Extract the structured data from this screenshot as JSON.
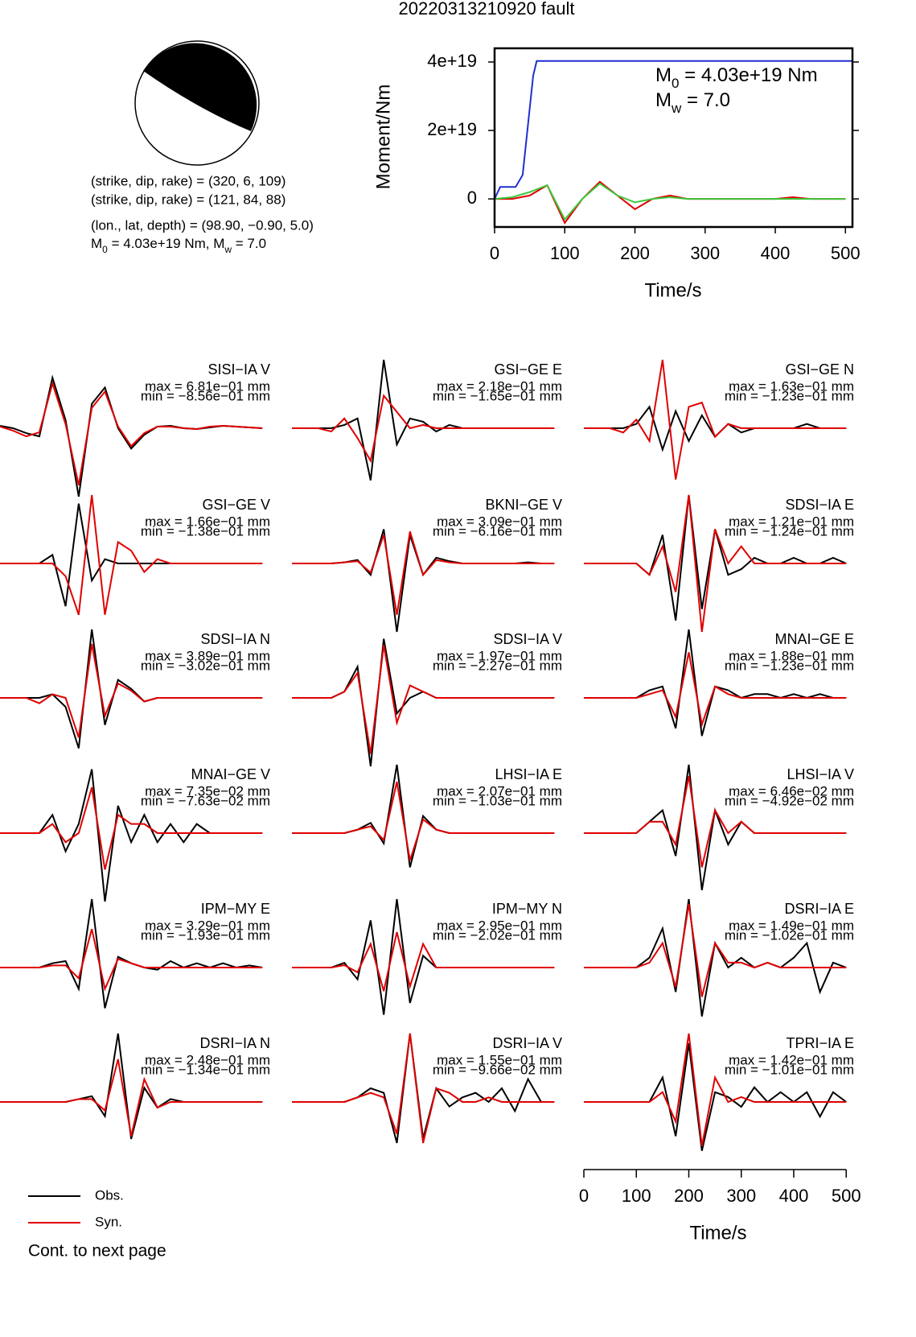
{
  "title": "20220313210920 fault",
  "focal": {
    "lines": [
      "(strike, dip, rake) = (320, 6, 109)",
      "(strike, dip, rake) = (121, 84, 88)",
      "(lon., lat, depth) = (98.90, −0.90, 5.0)"
    ],
    "moment_line": [
      "M",
      "0",
      " = 4.03e+19 Nm, M",
      "w",
      " = 7.0"
    ]
  },
  "chart_data": [
    {
      "type": "line",
      "ylabel": "Moment/Nm",
      "xlabel": "Time/s",
      "xlim": [
        0,
        510
      ],
      "ylim": [
        -8.2e+18,
        4.4e+19
      ],
      "xticks": [
        0,
        100,
        200,
        300,
        400,
        500
      ],
      "yticks": [
        0,
        {
          "value": 2e+19,
          "label": "2e+19"
        },
        {
          "value": 4e+19,
          "label": "4e+19"
        }
      ],
      "annotations": [
        [
          "M",
          "0",
          " = 4.03e+19 Nm"
        ],
        [
          "M",
          "w",
          " = 7.0"
        ]
      ],
      "series": [
        {
          "color": "#e00000",
          "x": [
            0,
            25,
            50,
            75,
            100,
            125,
            150,
            175,
            200,
            225,
            250,
            275,
            300,
            325,
            350,
            375,
            400,
            425,
            450,
            475,
            500
          ],
          "values": [
            0,
            0,
            1e+18,
            4e+18,
            -7e+18,
            0,
            5e+18,
            1e+18,
            -3e+18,
            0,
            1e+18,
            0,
            0,
            0,
            0,
            0,
            0,
            5e+17,
            0,
            0,
            0
          ]
        },
        {
          "color": "#3cc83c",
          "x": [
            0,
            25,
            50,
            75,
            100,
            125,
            150,
            175,
            200,
            225,
            250,
            275,
            300,
            325,
            350,
            375,
            400,
            425,
            450,
            475,
            500
          ],
          "values": [
            0,
            5e+17,
            2e+18,
            4e+18,
            -6e+18,
            0,
            4.5e+18,
            1e+18,
            -1e+18,
            0,
            5e+17,
            0,
            0,
            0,
            0,
            0,
            0,
            0,
            0,
            0,
            0
          ]
        },
        {
          "color": "#1f2fd0",
          "x": [
            0,
            8,
            20,
            30,
            40,
            55,
            60,
            510
          ],
          "values": [
            0,
            3.5e+18,
            3.5e+18,
            3.5e+18,
            7e+18,
            3.6e+19,
            4.03e+19,
            4.03e+19
          ]
        }
      ]
    },
    {
      "type": "waveform",
      "xlabel": "Time/s",
      "xlim": [
        0,
        515
      ],
      "xticks": [
        0,
        100,
        200,
        300,
        400,
        500
      ],
      "x": [
        0,
        25,
        50,
        75,
        100,
        125,
        150,
        175,
        200,
        225,
        250,
        275,
        300,
        325,
        350,
        375,
        400,
        425,
        450,
        475,
        500
      ],
      "legend": [
        {
          "name": "Obs.",
          "color": "#000000"
        },
        {
          "name": "Syn.",
          "color": "#e00000"
        }
      ],
      "footer": "Cont. to next page",
      "panels": [
        {
          "label": "SISI−IA V",
          "max_label": "max = 6.81e−01 mm",
          "min_label": "min = −8.56e−01 mm",
          "obs": [
            0.03,
            0,
            -0.06,
            -0.1,
            0.62,
            0.1,
            -0.84,
            0.3,
            0.5,
            0,
            -0.25,
            -0.08,
            0.02,
            0.03,
            0,
            -0.01,
            0.01,
            0.03,
            0.02,
            0.01,
            0
          ],
          "syn": [
            0.02,
            -0.03,
            -0.1,
            -0.05,
            0.55,
            0.05,
            -0.7,
            0.25,
            0.45,
            0.02,
            -0.22,
            -0.06,
            0.02,
            0.02,
            0,
            -0.01,
            0.02,
            0.03,
            0.02,
            0.01,
            0
          ]
        },
        {
          "label": "GSI−GE E",
          "max_label": "max = 2.18e−01 mm",
          "min_label": "min = −1.65e−01 mm",
          "obs": [
            0,
            0,
            0,
            0,
            0.01,
            0.03,
            -0.16,
            0.21,
            -0.05,
            0.03,
            0.02,
            -0.01,
            0.01,
            0,
            0,
            0,
            0,
            0,
            0,
            0,
            0
          ],
          "syn": [
            0,
            0,
            0,
            -0.01,
            0.03,
            -0.03,
            -0.1,
            0.1,
            0.05,
            0,
            0.01,
            0,
            0,
            0,
            0,
            0,
            0,
            0,
            0,
            0,
            0
          ]
        },
        {
          "label": "GSI−GE N",
          "max_label": "max = 1.63e−01 mm",
          "min_label": "min = −1.23e−01 mm",
          "obs": [
            0,
            0,
            0,
            0,
            0.01,
            0.05,
            -0.05,
            0.04,
            -0.03,
            0.03,
            -0.02,
            0.01,
            -0.01,
            0,
            0,
            0,
            0,
            0.01,
            0,
            0,
            0
          ],
          "syn": [
            0,
            0,
            0,
            -0.01,
            0.02,
            -0.03,
            0.16,
            -0.12,
            0.05,
            0.06,
            -0.02,
            0.01,
            0,
            0,
            0,
            0,
            0,
            0,
            0,
            0,
            0
          ]
        },
        {
          "label": "GSI−GE V",
          "max_label": "max = 1.66e−01 mm",
          "min_label": "min = −1.38e−01 mm",
          "obs": [
            0,
            0,
            0,
            0,
            0.02,
            -0.1,
            0.14,
            -0.04,
            0.01,
            0,
            0,
            0,
            0,
            0,
            0,
            0,
            0,
            0,
            0,
            0,
            0
          ],
          "syn": [
            0,
            0,
            0,
            0,
            0,
            -0.03,
            -0.12,
            0.16,
            -0.12,
            0.05,
            0.03,
            -0.02,
            0.01,
            0,
            0,
            0,
            0,
            0,
            0,
            0,
            0
          ]
        },
        {
          "label": "BKNI−GE V",
          "max_label": "max = 3.09e−01 mm",
          "min_label": "min = −6.16e−01 mm",
          "obs": [
            0,
            0,
            0,
            0,
            0.01,
            0.03,
            -0.1,
            0.3,
            -0.6,
            0.25,
            -0.1,
            0.05,
            0.02,
            0,
            0,
            0,
            0,
            0,
            0.01,
            0,
            0
          ],
          "syn": [
            0,
            0,
            0,
            0,
            0.01,
            0.02,
            -0.08,
            0.25,
            -0.45,
            0.28,
            -0.1,
            0.03,
            0.01,
            0,
            0,
            0,
            0,
            0,
            0,
            0,
            0
          ]
        },
        {
          "label": "SDSI−IA E",
          "max_label": "max = 1.21e−01 mm",
          "min_label": "min = −1.24e−01 mm",
          "obs": [
            0,
            0,
            0,
            0,
            0,
            -0.02,
            0.05,
            -0.1,
            0.12,
            -0.08,
            0.06,
            -0.02,
            -0.01,
            0.01,
            0,
            0,
            0.01,
            0,
            0,
            0.01,
            0
          ],
          "syn": [
            0,
            0,
            0,
            0,
            0,
            -0.02,
            0.03,
            -0.05,
            0.12,
            -0.12,
            0.06,
            0,
            0.03,
            0,
            0,
            0,
            0,
            0,
            0,
            0,
            0
          ]
        },
        {
          "label": "SDSI−IA N",
          "max_label": "max = 3.89e−01 mm",
          "min_label": "min = −3.02e−01 mm",
          "obs": [
            0,
            0,
            0,
            0,
            0.02,
            -0.05,
            -0.28,
            0.38,
            -0.15,
            0.1,
            0.05,
            -0.02,
            0,
            0,
            0,
            0,
            0,
            0,
            0,
            0,
            0
          ],
          "syn": [
            0,
            0,
            0,
            -0.03,
            0.02,
            0,
            -0.22,
            0.3,
            -0.1,
            0.08,
            0.04,
            -0.02,
            0,
            0,
            0,
            0,
            0,
            0,
            0,
            0,
            0
          ]
        },
        {
          "label": "SDSI−IA V",
          "max_label": "max = 1.97e−01 mm",
          "min_label": "min = −2.27e−01 mm",
          "obs": [
            0,
            0,
            0,
            0,
            0.02,
            0.1,
            -0.22,
            0.19,
            -0.05,
            0,
            0.02,
            0,
            0,
            0,
            0,
            0,
            0,
            0,
            0,
            0,
            0
          ],
          "syn": [
            0,
            0,
            0,
            0,
            0.02,
            0.08,
            -0.18,
            0.17,
            -0.08,
            0.04,
            0.02,
            0,
            0,
            0,
            0,
            0,
            0,
            0,
            0,
            0,
            0
          ]
        },
        {
          "label": "MNAI−GE E",
          "max_label": "max = 1.88e−01 mm",
          "min_label": "min = −1.23e−01 mm",
          "obs": [
            0,
            0,
            0,
            0,
            0,
            0.02,
            0.03,
            -0.08,
            0.18,
            -0.1,
            0.03,
            0.02,
            0,
            0.01,
            0.01,
            0,
            0.01,
            0,
            0.01,
            0,
            0
          ],
          "syn": [
            0,
            0,
            0,
            0,
            0,
            0.01,
            0.02,
            -0.05,
            0.12,
            -0.07,
            0.03,
            0.01,
            0,
            0,
            0,
            0,
            0,
            0,
            0,
            0,
            0
          ]
        },
        {
          "label": "MNAI−GE V",
          "max_label": "max = 7.35e−02 mm",
          "min_label": "min = −7.63e−02 mm",
          "obs": [
            0,
            0,
            0,
            0,
            0.02,
            -0.02,
            0.01,
            0.07,
            -0.075,
            0.03,
            -0.01,
            0.02,
            -0.01,
            0.01,
            -0.01,
            0.01,
            0,
            0,
            0,
            0,
            0
          ],
          "syn": [
            0,
            0,
            0,
            0,
            0.01,
            -0.01,
            0,
            0.05,
            -0.04,
            0.02,
            0.01,
            0.01,
            0,
            0,
            0,
            0,
            0,
            0,
            0,
            0,
            0
          ]
        },
        {
          "label": "LHSI−IA E",
          "max_label": "max = 2.07e−01 mm",
          "min_label": "min = −1.03e−01 mm",
          "obs": [
            0,
            0,
            0,
            0,
            0,
            0.01,
            0.03,
            -0.03,
            0.2,
            -0.1,
            0.05,
            0.01,
            0,
            0,
            0,
            0,
            0,
            0,
            0,
            0,
            0
          ],
          "syn": [
            0,
            0,
            0,
            0,
            0,
            0.01,
            0.02,
            -0.02,
            0.15,
            -0.08,
            0.04,
            0.01,
            0,
            0,
            0,
            0,
            0,
            0,
            0,
            0,
            0
          ]
        },
        {
          "label": "LHSI−IA V",
          "max_label": "max = 6.46e−02 mm",
          "min_label": "min = −4.92e−02 mm",
          "obs": [
            0,
            0,
            0,
            0,
            0,
            0.01,
            0.02,
            -0.02,
            0.06,
            -0.05,
            0.02,
            -0.01,
            0.01,
            0,
            0,
            0,
            0,
            0,
            0,
            0,
            0
          ],
          "syn": [
            0,
            0,
            0,
            0,
            0,
            0.01,
            0.01,
            -0.01,
            0.05,
            -0.03,
            0.02,
            0,
            0.01,
            0,
            0,
            0,
            0,
            0,
            0,
            0,
            0
          ]
        },
        {
          "label": "IPM−MY E",
          "max_label": "max = 3.29e−01 mm",
          "min_label": "min = −1.93e−01 mm",
          "obs": [
            0,
            0,
            0,
            0,
            0.02,
            0.03,
            -0.1,
            0.32,
            -0.19,
            0.05,
            0.02,
            0,
            -0.01,
            0.03,
            0,
            0.02,
            0,
            0.02,
            0,
            0.01,
            0
          ],
          "syn": [
            0,
            0,
            0,
            0,
            0.01,
            0.01,
            -0.05,
            0.18,
            -0.1,
            0.04,
            0.02,
            0,
            0,
            0,
            0,
            0,
            0,
            0,
            0,
            0,
            0
          ]
        },
        {
          "label": "IPM−MY N",
          "max_label": "max = 2.95e−01 mm",
          "min_label": "min = −2.02e−01 mm",
          "obs": [
            0,
            0,
            0,
            0,
            0.02,
            -0.05,
            0.2,
            -0.2,
            0.29,
            -0.15,
            0.05,
            0,
            0,
            0,
            0,
            0,
            0,
            0,
            0,
            0,
            0
          ],
          "syn": [
            0,
            0,
            0,
            0,
            0.01,
            -0.02,
            0.1,
            -0.1,
            0.15,
            -0.08,
            0.1,
            0,
            0,
            0,
            0,
            0,
            0,
            0,
            0,
            0,
            0
          ]
        },
        {
          "label": "DSRI−IA E",
          "max_label": "max = 1.49e−01 mm",
          "min_label": "min = −1.02e−01 mm",
          "obs": [
            0,
            0,
            0,
            0,
            0,
            0.02,
            0.08,
            -0.05,
            0.14,
            -0.1,
            0.05,
            0,
            0.02,
            0,
            0.01,
            0,
            0.02,
            0.05,
            -0.05,
            0.01,
            0
          ],
          "syn": [
            0,
            0,
            0,
            0,
            0,
            0.01,
            0.05,
            -0.04,
            0.13,
            -0.06,
            0.05,
            0.01,
            0.01,
            0,
            0.01,
            0,
            0,
            0,
            0,
            0,
            0
          ]
        },
        {
          "label": "DSRI−IA N",
          "max_label": "max = 2.48e−01 mm",
          "min_label": "min = −1.34e−01 mm",
          "obs": [
            0,
            0,
            0,
            0,
            0,
            0,
            0.01,
            0.02,
            -0.05,
            0.24,
            -0.13,
            0.05,
            -0.02,
            0.01,
            0,
            0,
            0,
            0,
            0,
            0,
            0
          ],
          "syn": [
            0,
            0,
            0,
            0,
            0,
            0,
            0.01,
            0.01,
            -0.03,
            0.15,
            -0.12,
            0.08,
            -0.02,
            0,
            0,
            0,
            0,
            0,
            0,
            0,
            0
          ]
        },
        {
          "label": "DSRI−IA V",
          "max_label": "max = 1.55e−01 mm",
          "min_label": "min = −9.66e−02 mm",
          "obs": [
            0,
            0,
            0,
            0,
            0,
            0.01,
            0.03,
            0.02,
            -0.09,
            0.15,
            -0.08,
            0.03,
            -0.01,
            0.01,
            0.02,
            0,
            0.03,
            -0.02,
            0.05,
            0,
            0
          ],
          "syn": [
            0,
            0,
            0,
            0,
            0,
            0.01,
            0.02,
            0.01,
            -0.07,
            0.15,
            -0.09,
            0.03,
            0.02,
            0,
            0,
            0.01,
            0,
            0,
            0,
            0,
            0
          ]
        },
        {
          "label": "TPRI−IA E",
          "max_label": "max = 1.42e−01 mm",
          "min_label": "min = −1.01e−01 mm",
          "obs": [
            0,
            0,
            0,
            0,
            0,
            0,
            0.05,
            -0.07,
            0.12,
            -0.1,
            0.02,
            0.01,
            -0.01,
            0.03,
            0,
            0.02,
            0,
            0.02,
            -0.03,
            0.02,
            0
          ],
          "syn": [
            0,
            0,
            0,
            0,
            0,
            0,
            0.02,
            -0.04,
            0.14,
            -0.09,
            0.05,
            0,
            0.01,
            0,
            0,
            0,
            0,
            0,
            0,
            0,
            0
          ]
        }
      ]
    }
  ]
}
